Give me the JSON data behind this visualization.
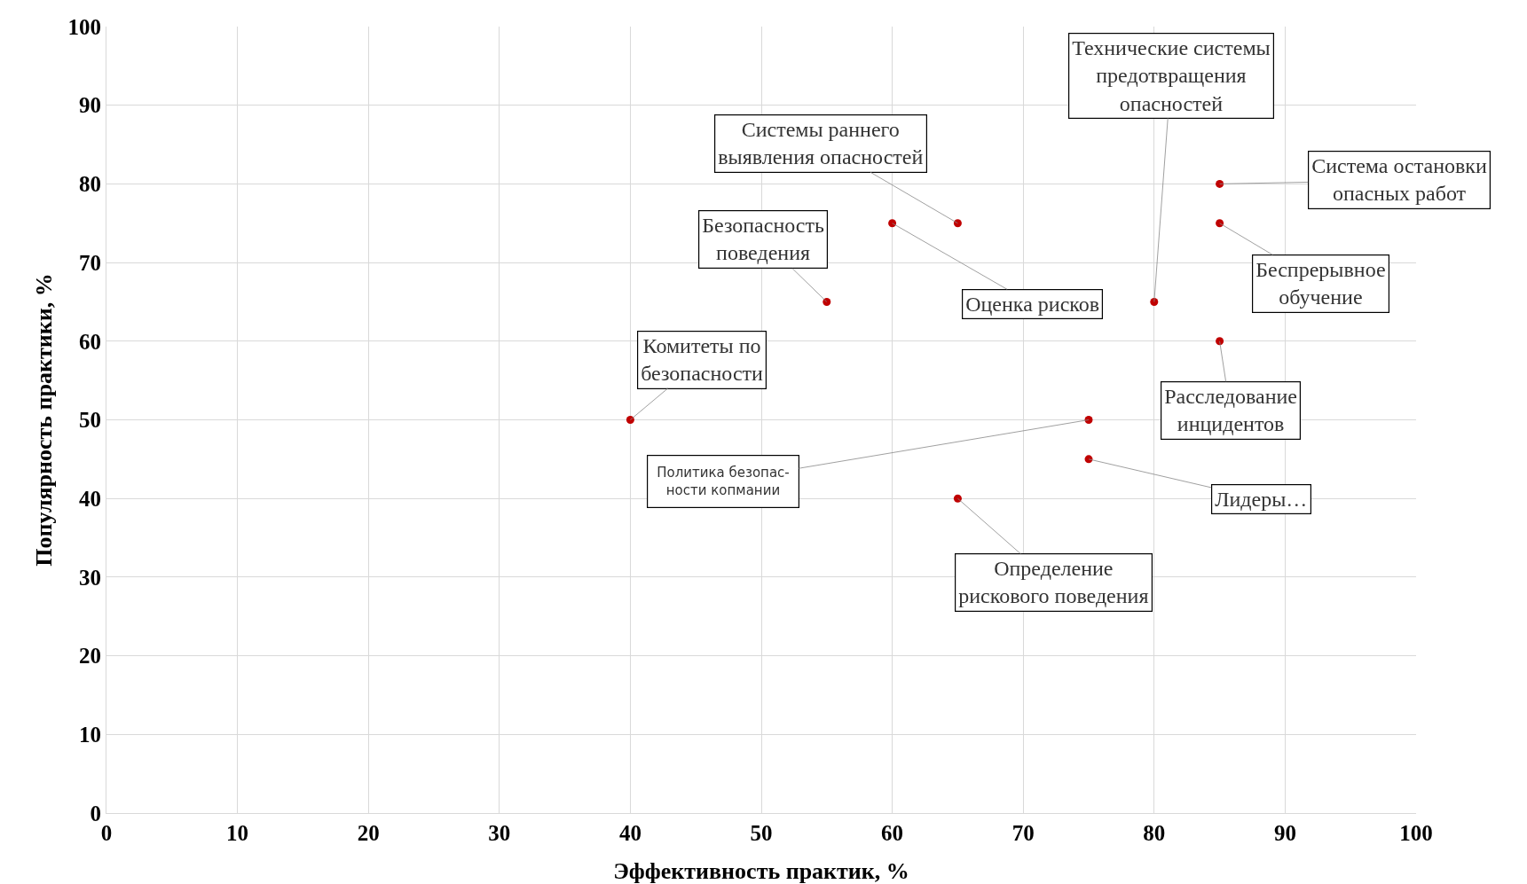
{
  "chart_data": {
    "type": "scatter",
    "xlabel": "Эффективность практик, %",
    "ylabel": "Популярность практики, %",
    "x": [
      40,
      55,
      65,
      60,
      80,
      85,
      85,
      85,
      75,
      75,
      65
    ],
    "values": [
      50,
      65,
      75,
      75,
      65,
      80,
      75,
      60,
      50,
      45,
      40
    ],
    "color": "#c00000",
    "marker": "circle",
    "grid": true,
    "xlim": [
      0,
      100
    ],
    "xticks": [
      0,
      10,
      20,
      30,
      40,
      50,
      60,
      70,
      80,
      90,
      100
    ],
    "ylim": [
      0,
      100
    ],
    "yticks": [
      0,
      10,
      20,
      30,
      40,
      50,
      60,
      70,
      80,
      90,
      100
    ],
    "annotations": [
      {
        "text": "Комитеты по\nбезопасности",
        "x": 40,
        "y": 50
      },
      {
        "text": "Безопасность\nповедения",
        "x": 55,
        "y": 65
      },
      {
        "text": "Системы раннего\nвыявления опасностей",
        "x": 65,
        "y": 75
      },
      {
        "text": "Оценка рисков",
        "x": 60,
        "y": 75
      },
      {
        "text": "Технические системы\nпредотвращения\nопасностей",
        "x": 80,
        "y": 65
      },
      {
        "text": "Система остановки\nопасных работ",
        "x": 85,
        "y": 80
      },
      {
        "text": "Беспрерывное\nобучение",
        "x": 85,
        "y": 75
      },
      {
        "text": "Расследование\nинцидентов",
        "x": 85,
        "y": 60
      },
      {
        "text": "Политика безопас-\nности копмании",
        "x": 75,
        "y": 50
      },
      {
        "text": "Лидеры…",
        "x": 75,
        "y": 45
      },
      {
        "text": "Определение\nрискового поведения",
        "x": 65,
        "y": 40
      }
    ]
  }
}
